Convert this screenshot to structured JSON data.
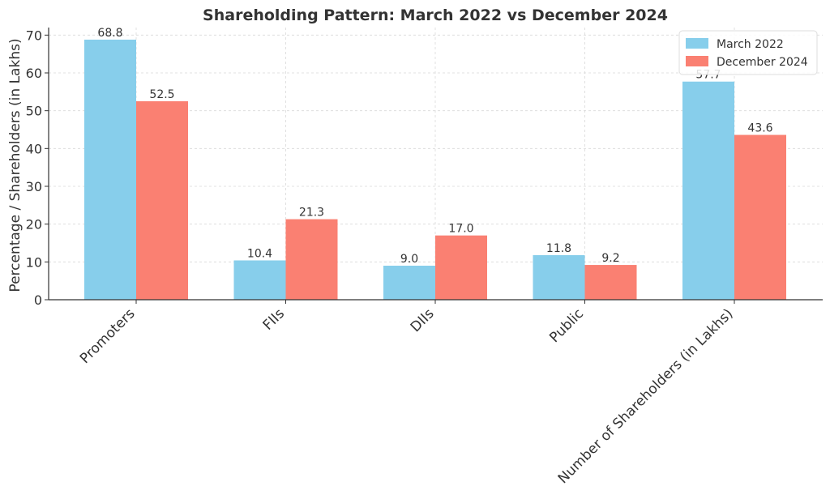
{
  "chart_data": {
    "type": "bar",
    "title": "Shareholding Pattern: March 2022 vs December 2024",
    "xlabel": "",
    "ylabel": "Percentage / Shareholders (in Lakhs)",
    "ylim": [
      0,
      72
    ],
    "yticks": [
      0,
      10,
      20,
      30,
      40,
      50,
      60,
      70
    ],
    "categories": [
      "Promoters",
      "FIIs",
      "DIIs",
      "Public",
      "Number of Shareholders (in Lakhs)"
    ],
    "series": [
      {
        "name": "March 2022",
        "color": "#87CEEB",
        "values": [
          68.8,
          10.4,
          9.0,
          11.8,
          57.7
        ],
        "labels": [
          "68.8",
          "10.4",
          "9.0",
          "11.8",
          "57.7"
        ]
      },
      {
        "name": "December 2024",
        "color": "#FA8072",
        "values": [
          52.5,
          21.3,
          17.0,
          9.2,
          43.6
        ],
        "labels": [
          "52.5",
          "21.3",
          "17.0",
          "9.2",
          "43.6"
        ]
      }
    ],
    "grid": true,
    "legend_position": "top-right",
    "axis_color": "#333333",
    "grid_color": "#d9d9d9"
  }
}
